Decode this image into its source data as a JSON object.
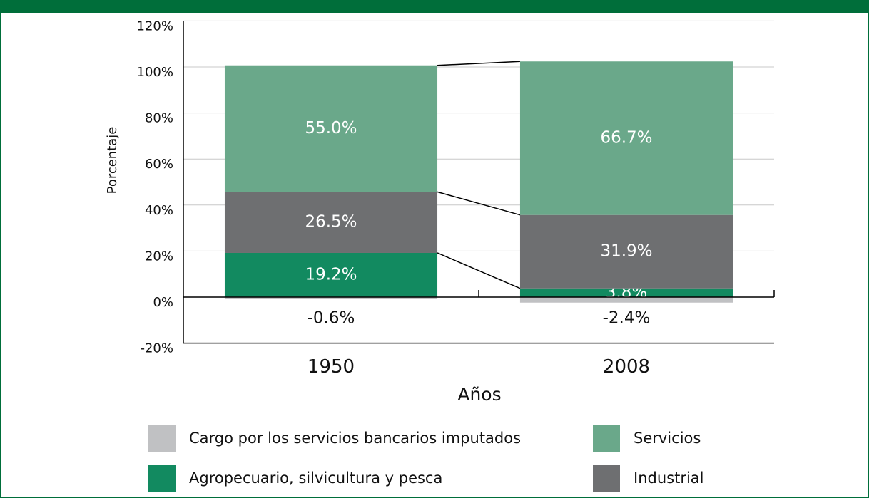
{
  "chart_data": {
    "type": "bar",
    "stacked": true,
    "categories": [
      "1950",
      "2008"
    ],
    "series": [
      {
        "name": "Agropecuario, silvicultura y pesca",
        "color": "#128a60",
        "label_color": "#ffffff",
        "values": [
          19.2,
          3.8
        ],
        "value_labels": [
          "19.2%",
          "3.8%"
        ]
      },
      {
        "name": "Industrial",
        "color": "#6e6f71",
        "label_color": "#ffffff",
        "values": [
          26.5,
          31.9
        ],
        "value_labels": [
          "26.5%",
          "31.9%"
        ]
      },
      {
        "name": "Servicios",
        "color": "#6aa88a",
        "label_color": "#ffffff",
        "values": [
          55.0,
          66.7
        ],
        "value_labels": [
          "55.0%",
          "66.7%"
        ]
      },
      {
        "name": "Cargo por los servicios bancarios imputados",
        "color": "#c0c1c3",
        "label_color": "#111111",
        "values": [
          -0.6,
          -2.4
        ],
        "value_labels": [
          "-0.6%",
          "-2.4%"
        ]
      }
    ],
    "ylim": [
      -20,
      120
    ],
    "yticks": [
      {
        "value": -20,
        "label": "-20%"
      },
      {
        "value": 0,
        "label": "0%"
      },
      {
        "value": 20,
        "label": "20%"
      },
      {
        "value": 40,
        "label": "40%"
      },
      {
        "value": 60,
        "label": "60%"
      },
      {
        "value": 80,
        "label": "80%"
      },
      {
        "value": 100,
        "label": "100%"
      },
      {
        "value": 120,
        "label": "120%"
      }
    ],
    "ylabel": "Porcentaje",
    "xlabel": "Años",
    "grid": true
  }
}
